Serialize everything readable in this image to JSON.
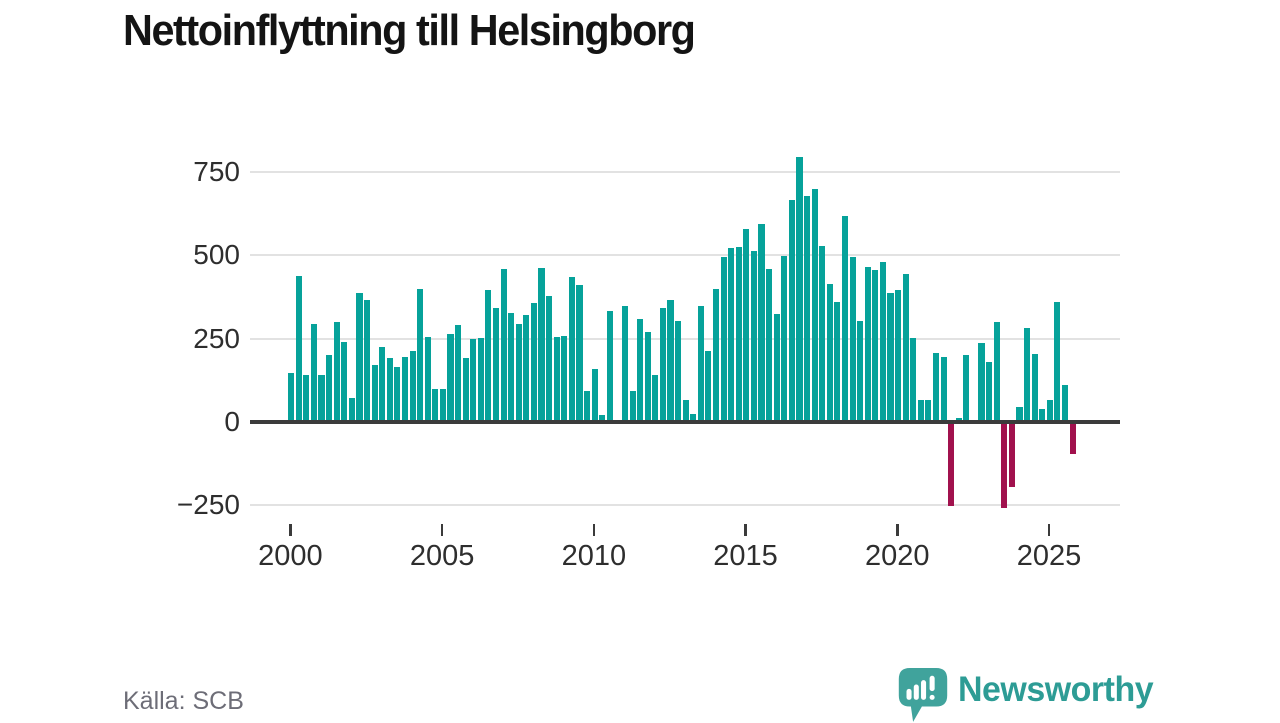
{
  "title": "Nettoinflyttning till Helsingborg",
  "source": "Källa: SCB",
  "branding": {
    "name": "Newsworthy",
    "icon": "speech-bubble-bar-chart"
  },
  "colors": {
    "positive_bar": "#06a29a",
    "negative_bar": "#a1114d",
    "gridline": "#e2e2e2",
    "zero_axis": "#3b3b3b",
    "tick_label": "#2e2e2e",
    "title_text": "#141414",
    "source_text": "#6d6d77",
    "brand_teal": "#2d9c95"
  },
  "chart_data": {
    "type": "bar",
    "title": "Nettoinflyttning till Helsingborg",
    "frequency": "quarterly",
    "x_start": {
      "year": 2000,
      "quarter": 1
    },
    "x_tick_years": [
      2000,
      2005,
      2010,
      2015,
      2020,
      2025
    ],
    "y_ticks": [
      750,
      500,
      250,
      0,
      -250
    ],
    "y_tick_labels": [
      "750",
      "500",
      "250",
      "0",
      "−250"
    ],
    "ylim": [
      -280,
      840
    ],
    "grid": "horizontal",
    "legend": "none",
    "series": [
      {
        "name": "Nettoinflyttning",
        "values": [
          148,
          437,
          141,
          294,
          141,
          202,
          299,
          240,
          71,
          386,
          366,
          171,
          225,
          192,
          166,
          195,
          212,
          398,
          254,
          98,
          100,
          265,
          290,
          193,
          250,
          252,
          396,
          342,
          460,
          326,
          294,
          320,
          356,
          462,
          377,
          254,
          258,
          435,
          412,
          93,
          160,
          21,
          332,
          0,
          348,
          93,
          308,
          270,
          140,
          343,
          366,
          303,
          65,
          25,
          348,
          212,
          400,
          494,
          522,
          526,
          578,
          512,
          595,
          459,
          325,
          497,
          665,
          795,
          678,
          700,
          529,
          413,
          360,
          617,
          494,
          302,
          466,
          455,
          479,
          388,
          396,
          445,
          252,
          67,
          67,
          207,
          194,
          -252,
          13,
          200,
          0,
          237,
          180,
          299,
          -258,
          -195,
          45,
          282,
          204,
          40,
          66,
          360,
          111,
          -95
        ]
      }
    ]
  }
}
